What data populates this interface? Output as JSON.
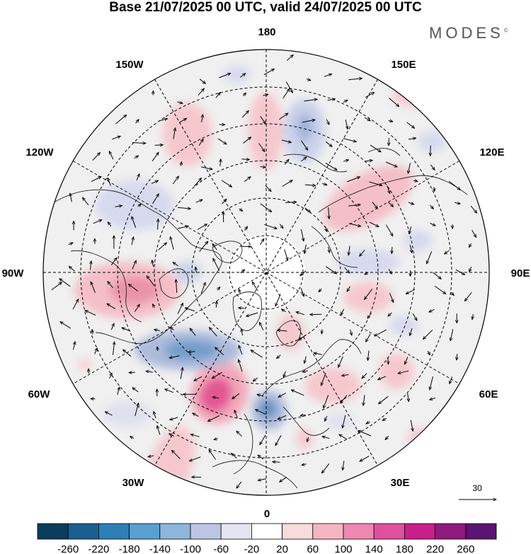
{
  "title": "Base 21/07/2025 00 UTC, valid 24/07/2025 00 UTC",
  "brand": "MODES",
  "brand_mark": "©",
  "longitude_labels": {
    "top": "180",
    "bottom": "0",
    "left": "90W",
    "right": "90E",
    "upper_left_1": "150W",
    "upper_left_2": "120W",
    "upper_right_1": "150E",
    "upper_right_2": "120E",
    "lower_left_1": "60W",
    "lower_left_2": "30W",
    "lower_right_1": "60E",
    "lower_right_2": "30E"
  },
  "reference_vector_label": "30",
  "colorbar": {
    "labels": [
      "-260",
      "-220",
      "-180",
      "-140",
      "-100",
      "-60",
      "-20",
      "20",
      "60",
      "100",
      "140",
      "180",
      "220",
      "260"
    ],
    "colors": [
      "#0b3d5c",
      "#1a5f8f",
      "#2e7fb8",
      "#5aa0cf",
      "#8db6dc",
      "#bcc6e4",
      "#e4e4f2",
      "#ffffff",
      "#f8dcdc",
      "#f4b6c0",
      "#ee88b0",
      "#e0509e",
      "#c81f8a",
      "#8e1a7d",
      "#5a1471"
    ]
  },
  "colors": {
    "ocean": "#f0f0f0",
    "land_line": "#222222",
    "positive": "#f4b6c0",
    "negative": "#aab7d8"
  }
}
